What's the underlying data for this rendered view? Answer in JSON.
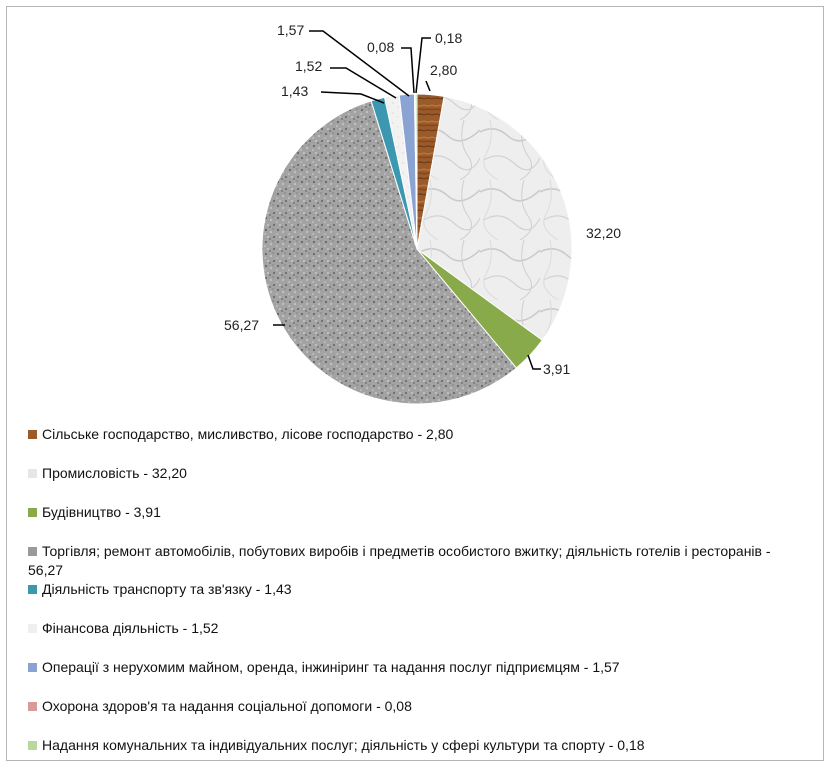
{
  "chart_data": {
    "type": "pie",
    "title": "",
    "slices": [
      {
        "value": 2.8,
        "label": "2,80",
        "legend": "Сільське господарство, мисливство, лісове господарство - 2,80",
        "color": "#9b5a2a",
        "pattern": "wood"
      },
      {
        "value": 32.2,
        "label": "32,20",
        "legend": "Промисловість - 32,20",
        "color": "#e8e8e8",
        "pattern": "marble"
      },
      {
        "value": 3.91,
        "label": "3,91",
        "legend": "Будівництво - 3,91",
        "color": "#88aa4a",
        "pattern": "solid"
      },
      {
        "value": 56.27,
        "label": "56,27",
        "legend": "Торгівля; ремонт автомобілів, побутових виробів і предметів особистого вжитку; діяльність готелів і ресторанів - 56,27",
        "color": "#a0a0a0",
        "pattern": "granite"
      },
      {
        "value": 1.43,
        "label": "1,43",
        "legend": "Діяльність транспорту та зв'язку - 1,43",
        "color": "#3c98b0",
        "pattern": "solid"
      },
      {
        "value": 1.52,
        "label": "1,52",
        "legend": "Фінансова діяльність - 1,52",
        "color": "#f0f0f0",
        "pattern": "light"
      },
      {
        "value": 1.57,
        "label": "1,57",
        "legend": "Операції з нерухомим майном, оренда, інжиніринг та надання послуг підприємцям - 1,57",
        "color": "#8aa3d2",
        "pattern": "solid"
      },
      {
        "value": 0.08,
        "label": "0,08",
        "legend": "Охорона здоров'я та надання соціальної допомоги - 0,08",
        "color": "#d99a9a",
        "pattern": "solid"
      },
      {
        "value": 0.18,
        "label": "0,18",
        "legend": "Надання комунальних та індивідуальних послуг; діяльність у сфері культури та спорту - 0,18",
        "color": "#b8d89c",
        "pattern": "solid"
      }
    ]
  }
}
